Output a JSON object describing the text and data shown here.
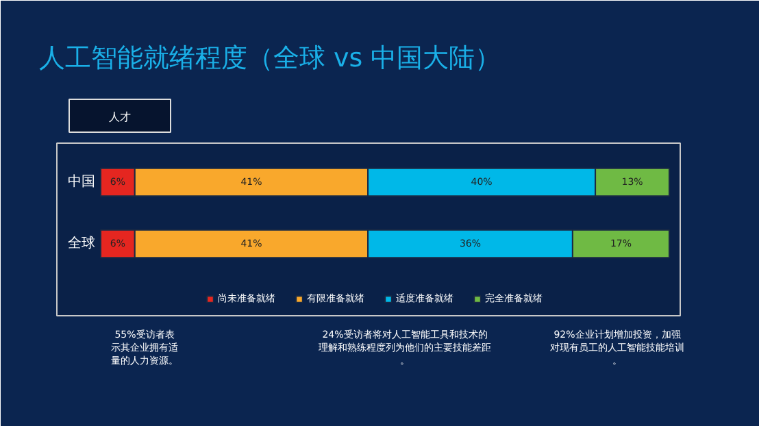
{
  "chart_data": {
    "type": "bar",
    "orientation": "horizontal",
    "stacked": true,
    "title": "人工智能就绪程度（全球 vs 中国大陆）",
    "subtitle": "人才",
    "categories": [
      "中国",
      "全球"
    ],
    "xlim": [
      0,
      100
    ],
    "legend": "bottom",
    "series": [
      {
        "name": "尚未准备就绪",
        "color": "#e52620",
        "values": [
          6,
          6
        ],
        "value_labels": [
          "6%",
          "6%"
        ]
      },
      {
        "name": "有限准备就绪",
        "color": "#f9a82c",
        "values": [
          41,
          41
        ],
        "value_labels": [
          "41%",
          "41%"
        ]
      },
      {
        "name": "适度准备就绪",
        "color": "#00b8e8",
        "values": [
          40,
          36
        ],
        "value_labels": [
          "40%",
          "36%"
        ]
      },
      {
        "name": "完全准备就绪",
        "color": "#6fba44",
        "values": [
          13,
          17
        ],
        "value_labels": [
          "13%",
          "17%"
        ]
      }
    ],
    "annotations": [
      "55%受访者表示其企业拥有适量的人力资源。",
      "24%受访者将对人工智能工具和技术的理解和熟练程度列为他们的主要技能差距。",
      "92%企业计划增加投资，加强对现有员工的人工智能技能培训。"
    ]
  }
}
